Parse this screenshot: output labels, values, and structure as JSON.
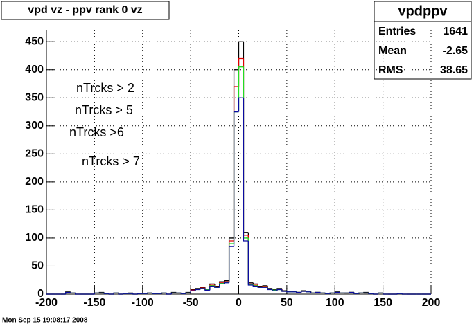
{
  "chart_data": {
    "type": "histogram",
    "title": "vpd vz - ppv rank 0 vz",
    "stats": {
      "name": "vpdppv",
      "rows": [
        {
          "label": "Entries",
          "value": 1641
        },
        {
          "label": "Mean",
          "value": -2.65
        },
        {
          "label": "RMS",
          "value": 38.65
        }
      ]
    },
    "timestamp": "Mon Sep 15 19:08:17 2008",
    "bins": [
      -200,
      -195,
      -190,
      -185,
      -180,
      -175,
      -170,
      -165,
      -160,
      -155,
      -150,
      -145,
      -140,
      -135,
      -130,
      -125,
      -120,
      -115,
      -110,
      -105,
      -100,
      -95,
      -90,
      -85,
      -80,
      -75,
      -70,
      -65,
      -60,
      -55,
      -50,
      -45,
      -40,
      -35,
      -30,
      -25,
      -20,
      -15,
      -10,
      -5,
      0,
      5,
      10,
      15,
      20,
      25,
      30,
      35,
      40,
      45,
      50,
      55,
      60,
      65,
      70,
      75,
      80,
      85,
      90,
      95,
      100,
      105,
      110,
      115,
      120,
      125,
      130,
      135,
      140,
      145,
      150,
      155,
      160,
      165,
      170,
      175,
      180,
      185,
      190,
      195,
      200
    ],
    "series": [
      {
        "name": "nTrcks > 2",
        "color": "#000000",
        "values": [
          0,
          0,
          0,
          0,
          4,
          2,
          0,
          0,
          0,
          0,
          2,
          3,
          1,
          0,
          2,
          0,
          1,
          2,
          0,
          1,
          1,
          2,
          1,
          1,
          2,
          0,
          3,
          2,
          1,
          3,
          8,
          10,
          12,
          9,
          18,
          14,
          22,
          24,
          100,
          400,
          450,
          110,
          20,
          18,
          14,
          15,
          10,
          8,
          10,
          6,
          5,
          4,
          3,
          6,
          5,
          2,
          3,
          2,
          1,
          2,
          4,
          2,
          2,
          3,
          1,
          2,
          3,
          1,
          0,
          2,
          0,
          0,
          0,
          1,
          0,
          0,
          0,
          0,
          0,
          0
        ]
      },
      {
        "name": "nTrcks > 5",
        "color": "#e00000",
        "values": [
          0,
          0,
          0,
          0,
          3,
          2,
          0,
          0,
          0,
          0,
          2,
          2,
          1,
          0,
          2,
          0,
          1,
          1,
          0,
          1,
          1,
          2,
          1,
          1,
          2,
          0,
          2,
          2,
          1,
          2,
          7,
          9,
          11,
          8,
          16,
          13,
          20,
          22,
          95,
          370,
          420,
          105,
          18,
          16,
          13,
          14,
          9,
          7,
          9,
          5,
          4,
          4,
          3,
          5,
          4,
          2,
          3,
          2,
          1,
          2,
          3,
          2,
          2,
          3,
          1,
          2,
          2,
          1,
          0,
          2,
          0,
          0,
          0,
          1,
          0,
          0,
          0,
          0,
          0,
          0
        ]
      },
      {
        "name": "nTrcks >6",
        "color": "#22dd22",
        "values": [
          0,
          0,
          0,
          0,
          3,
          2,
          0,
          0,
          0,
          0,
          2,
          2,
          1,
          0,
          2,
          0,
          1,
          1,
          0,
          1,
          1,
          2,
          1,
          1,
          2,
          0,
          2,
          2,
          1,
          2,
          6,
          9,
          10,
          8,
          15,
          12,
          19,
          21,
          90,
          325,
          405,
          100,
          17,
          15,
          12,
          13,
          9,
          7,
          8,
          5,
          4,
          4,
          3,
          5,
          4,
          2,
          3,
          2,
          1,
          2,
          3,
          2,
          2,
          3,
          1,
          2,
          2,
          1,
          0,
          2,
          0,
          0,
          0,
          1,
          0,
          0,
          0,
          0,
          0,
          0
        ]
      },
      {
        "name": "nTrcks > 7",
        "color": "#0a0aa0",
        "values": [
          0,
          0,
          0,
          0,
          3,
          2,
          0,
          0,
          0,
          0,
          2,
          2,
          1,
          0,
          2,
          0,
          1,
          1,
          0,
          1,
          1,
          2,
          1,
          1,
          2,
          0,
          2,
          2,
          1,
          2,
          6,
          8,
          10,
          7,
          14,
          12,
          18,
          20,
          85,
          325,
          350,
          95,
          16,
          14,
          12,
          12,
          8,
          6,
          8,
          5,
          4,
          4,
          3,
          5,
          4,
          2,
          3,
          2,
          1,
          2,
          3,
          2,
          2,
          3,
          1,
          2,
          2,
          1,
          0,
          2,
          0,
          0,
          0,
          1,
          0,
          0,
          0,
          0,
          0,
          0
        ]
      }
    ],
    "xlim": [
      -200,
      200
    ],
    "ylim": [
      0,
      470
    ],
    "xticks": [
      -200,
      -150,
      -100,
      -50,
      0,
      50,
      100,
      150,
      200
    ],
    "yticks": [
      0,
      50,
      100,
      150,
      200,
      250,
      300,
      350,
      400,
      450
    ],
    "grid": true
  }
}
